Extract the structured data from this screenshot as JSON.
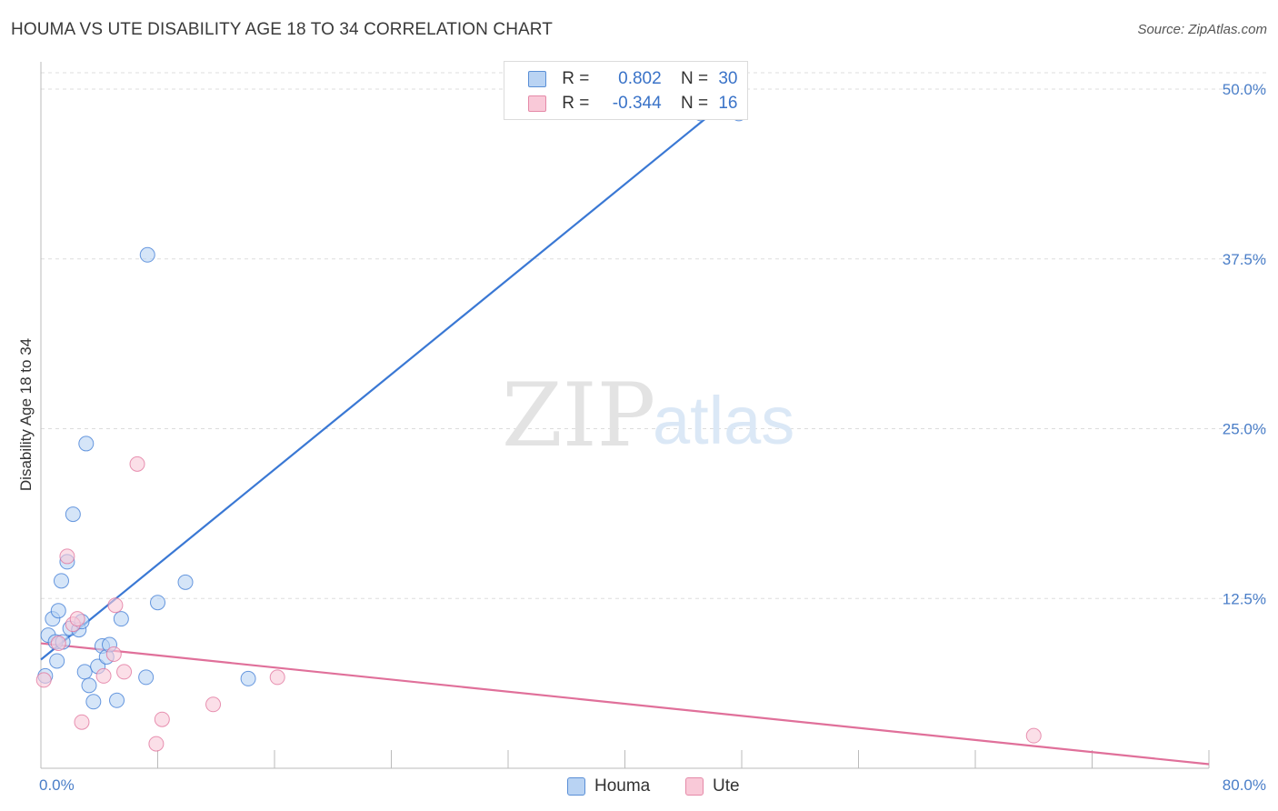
{
  "title": "HOUMA VS UTE DISABILITY AGE 18 TO 34 CORRELATION CHART",
  "source": "Source: ZipAtlas.com",
  "watermark": {
    "zip": "ZIP",
    "atlas": "atlas"
  },
  "legend": {
    "r_label": "R =",
    "n_label": "N =",
    "rows": [
      {
        "r": "0.802",
        "n": "30",
        "swatch": "#b9d3f3",
        "border": "#5a8fd6"
      },
      {
        "r": "-0.344",
        "n": "16",
        "swatch": "#f9c9d8",
        "border": "#e58aa8"
      }
    ]
  },
  "bottom_legend": [
    {
      "name": "Houma",
      "swatch": "#b9d3f3",
      "border": "#5a8fd6"
    },
    {
      "name": "Ute",
      "swatch": "#f9c9d8",
      "border": "#e58aa8"
    }
  ],
  "chart_data": {
    "type": "scatter",
    "title": "HOUMA VS UTE DISABILITY AGE 18 TO 34 CORRELATION CHART",
    "xlabel": "",
    "ylabel": "Disability Age 18 to 34",
    "xlim": [
      0,
      80
    ],
    "ylim": [
      0,
      50
    ],
    "x_tick_labels": [
      "0.0%",
      "80.0%"
    ],
    "y_ticks": [
      12.5,
      25.0,
      37.5,
      50.0
    ],
    "y_tick_labels": [
      "12.5%",
      "25.0%",
      "37.5%",
      "50.0%"
    ],
    "series": [
      {
        "name": "Houma",
        "color": "#3a78d4",
        "fill": "#b9d3f3",
        "points": [
          [
            0.3,
            6.8
          ],
          [
            0.5,
            9.8
          ],
          [
            0.8,
            11.0
          ],
          [
            1.0,
            9.3
          ],
          [
            1.1,
            7.9
          ],
          [
            1.2,
            11.6
          ],
          [
            1.5,
            9.3
          ],
          [
            1.4,
            13.8
          ],
          [
            1.8,
            15.2
          ],
          [
            2.0,
            10.3
          ],
          [
            2.2,
            18.7
          ],
          [
            2.6,
            10.2
          ],
          [
            2.8,
            10.8
          ],
          [
            3.0,
            7.1
          ],
          [
            3.1,
            23.9
          ],
          [
            3.3,
            6.1
          ],
          [
            3.6,
            4.9
          ],
          [
            3.9,
            7.5
          ],
          [
            4.2,
            9.0
          ],
          [
            4.5,
            8.2
          ],
          [
            4.7,
            9.1
          ],
          [
            5.2,
            5.0
          ],
          [
            5.5,
            11.0
          ],
          [
            7.2,
            6.7
          ],
          [
            7.3,
            37.8
          ],
          [
            8.0,
            12.2
          ],
          [
            9.9,
            13.7
          ],
          [
            14.2,
            6.6
          ],
          [
            45.2,
            48.2
          ],
          [
            47.8,
            48.2
          ]
        ],
        "trend": {
          "x": [
            0,
            48
          ],
          "y": [
            8.0,
            50.0
          ]
        }
      },
      {
        "name": "Ute",
        "color": "#e0709a",
        "fill": "#f9c9d8",
        "points": [
          [
            0.2,
            6.5
          ],
          [
            1.2,
            9.2
          ],
          [
            1.8,
            15.6
          ],
          [
            2.2,
            10.6
          ],
          [
            2.5,
            11.0
          ],
          [
            2.8,
            3.4
          ],
          [
            4.3,
            6.8
          ],
          [
            5.0,
            8.4
          ],
          [
            5.1,
            12.0
          ],
          [
            5.7,
            7.1
          ],
          [
            6.6,
            22.4
          ],
          [
            7.9,
            1.8
          ],
          [
            8.3,
            3.6
          ],
          [
            11.8,
            4.7
          ],
          [
            16.2,
            6.7
          ],
          [
            68.0,
            2.4
          ]
        ],
        "trend": {
          "x": [
            0,
            80
          ],
          "y": [
            9.2,
            0.3
          ]
        }
      }
    ]
  }
}
